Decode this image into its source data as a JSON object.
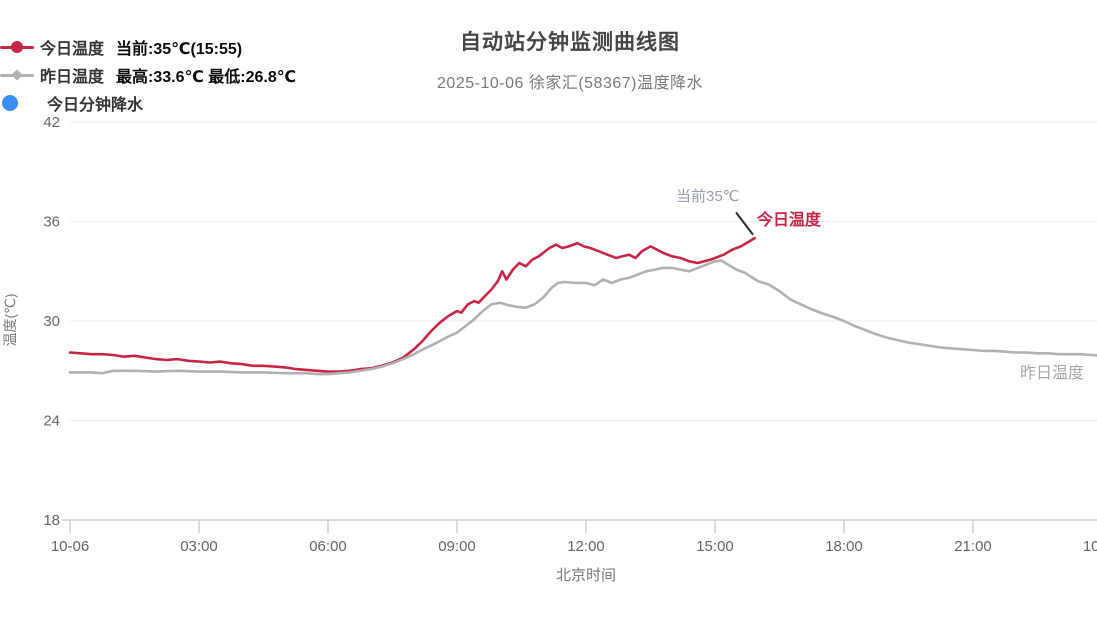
{
  "header": {
    "title": "自动站分钟监测曲线图",
    "subtitle": "2025-10-06 徐家汇(58367)温度降水"
  },
  "legend": {
    "items": [
      {
        "label": "今日温度",
        "value": "当前:35℃(15:55)",
        "marker": "line-circle",
        "color": "#c82647"
      },
      {
        "label": "昨日温度",
        "value": "最高:33.6℃ 最低:26.8℃",
        "marker": "line-diamond",
        "color": "#b1b1b1"
      },
      {
        "label": "今日分钟降水",
        "value": "",
        "marker": "circle",
        "color": "#3b8ef3"
      }
    ]
  },
  "axes": {
    "x": {
      "name": "北京时间",
      "ticks": [
        {
          "h": 0,
          "label": "10-06"
        },
        {
          "h": 3,
          "label": "03:00"
        },
        {
          "h": 6,
          "label": "06:00"
        },
        {
          "h": 9,
          "label": "09:00"
        },
        {
          "h": 12,
          "label": "12:00"
        },
        {
          "h": 15,
          "label": "15:00"
        },
        {
          "h": 18,
          "label": "18:00"
        },
        {
          "h": 21,
          "label": "21:00"
        },
        {
          "h": 24,
          "label": "10-07"
        }
      ]
    },
    "y": {
      "name": "温度(℃)",
      "min": 18,
      "max": 42,
      "ticks": [
        18,
        24,
        30,
        36,
        42
      ]
    }
  },
  "annotations": {
    "current_value": "当前35℃",
    "today_series_label": "今日温度",
    "yesterday_series_label": "昨日温度"
  },
  "chart_data": {
    "type": "line",
    "title": "自动站分钟监测曲线图",
    "subtitle": "2025-10-06 徐家汇(58367)温度降水",
    "xlabel": "北京时间",
    "ylabel": "温度(℃)",
    "ylim": [
      18,
      42
    ],
    "x_hours_range": [
      0,
      24
    ],
    "grid": true,
    "legend_position": "top-left",
    "series": [
      {
        "name": "今日温度",
        "type": "line",
        "color": "#c82647",
        "current": "35℃ (15:55)",
        "points": [
          [
            0,
            28.1
          ],
          [
            0.25,
            28.05
          ],
          [
            0.5,
            28.0
          ],
          [
            0.75,
            28.0
          ],
          [
            1,
            27.95
          ],
          [
            1.25,
            27.85
          ],
          [
            1.5,
            27.9
          ],
          [
            1.75,
            27.8
          ],
          [
            2,
            27.7
          ],
          [
            2.25,
            27.65
          ],
          [
            2.5,
            27.7
          ],
          [
            2.75,
            27.6
          ],
          [
            3,
            27.55
          ],
          [
            3.25,
            27.5
          ],
          [
            3.5,
            27.55
          ],
          [
            3.75,
            27.45
          ],
          [
            4,
            27.4
          ],
          [
            4.25,
            27.3
          ],
          [
            4.5,
            27.3
          ],
          [
            4.75,
            27.25
          ],
          [
            5,
            27.2
          ],
          [
            5.25,
            27.1
          ],
          [
            5.5,
            27.05
          ],
          [
            5.75,
            27.0
          ],
          [
            6,
            26.95
          ],
          [
            6.25,
            26.95
          ],
          [
            6.5,
            27.0
          ],
          [
            6.75,
            27.1
          ],
          [
            7,
            27.15
          ],
          [
            7.25,
            27.3
          ],
          [
            7.5,
            27.5
          ],
          [
            7.75,
            27.8
          ],
          [
            8,
            28.3
          ],
          [
            8.2,
            28.8
          ],
          [
            8.4,
            29.4
          ],
          [
            8.6,
            29.9
          ],
          [
            8.8,
            30.3
          ],
          [
            9,
            30.6
          ],
          [
            9.1,
            30.5
          ],
          [
            9.25,
            31.0
          ],
          [
            9.4,
            31.2
          ],
          [
            9.5,
            31.1
          ],
          [
            9.65,
            31.5
          ],
          [
            9.8,
            31.9
          ],
          [
            9.95,
            32.4
          ],
          [
            10.05,
            33.0
          ],
          [
            10.15,
            32.5
          ],
          [
            10.3,
            33.1
          ],
          [
            10.45,
            33.5
          ],
          [
            10.6,
            33.3
          ],
          [
            10.75,
            33.7
          ],
          [
            10.9,
            33.9
          ],
          [
            11,
            34.1
          ],
          [
            11.15,
            34.4
          ],
          [
            11.3,
            34.6
          ],
          [
            11.45,
            34.4
          ],
          [
            11.6,
            34.5
          ],
          [
            11.8,
            34.7
          ],
          [
            11.95,
            34.5
          ],
          [
            12.1,
            34.4
          ],
          [
            12.3,
            34.2
          ],
          [
            12.5,
            34.0
          ],
          [
            12.7,
            33.8
          ],
          [
            12.85,
            33.9
          ],
          [
            13,
            34.0
          ],
          [
            13.15,
            33.8
          ],
          [
            13.3,
            34.2
          ],
          [
            13.5,
            34.5
          ],
          [
            13.65,
            34.3
          ],
          [
            13.8,
            34.1
          ],
          [
            14,
            33.9
          ],
          [
            14.2,
            33.8
          ],
          [
            14.4,
            33.6
          ],
          [
            14.6,
            33.5
          ],
          [
            14.75,
            33.6
          ],
          [
            14.9,
            33.7
          ],
          [
            15,
            33.8
          ],
          [
            15.2,
            34.0
          ],
          [
            15.4,
            34.3
          ],
          [
            15.6,
            34.5
          ],
          [
            15.8,
            34.8
          ],
          [
            15.92,
            35.0
          ]
        ]
      },
      {
        "name": "昨日温度",
        "type": "line",
        "color": "#b1b1b1",
        "max": 33.6,
        "min": 26.8,
        "points": [
          [
            0,
            26.9
          ],
          [
            0.5,
            26.9
          ],
          [
            0.75,
            26.85
          ],
          [
            1,
            27.0
          ],
          [
            1.5,
            27.0
          ],
          [
            2,
            26.95
          ],
          [
            2.5,
            27.0
          ],
          [
            3,
            26.95
          ],
          [
            3.5,
            26.95
          ],
          [
            4,
            26.9
          ],
          [
            4.5,
            26.9
          ],
          [
            5,
            26.85
          ],
          [
            5.5,
            26.85
          ],
          [
            5.75,
            26.8
          ],
          [
            6,
            26.8
          ],
          [
            6.25,
            26.85
          ],
          [
            6.5,
            26.9
          ],
          [
            6.75,
            27.0
          ],
          [
            7,
            27.1
          ],
          [
            7.25,
            27.25
          ],
          [
            7.5,
            27.45
          ],
          [
            7.75,
            27.7
          ],
          [
            8,
            28.0
          ],
          [
            8.25,
            28.35
          ],
          [
            8.5,
            28.65
          ],
          [
            8.75,
            29.0
          ],
          [
            9,
            29.3
          ],
          [
            9.2,
            29.7
          ],
          [
            9.4,
            30.1
          ],
          [
            9.6,
            30.6
          ],
          [
            9.8,
            31.0
          ],
          [
            10,
            31.1
          ],
          [
            10.2,
            30.95
          ],
          [
            10.4,
            30.85
          ],
          [
            10.6,
            30.8
          ],
          [
            10.8,
            31.0
          ],
          [
            11,
            31.4
          ],
          [
            11.2,
            32.0
          ],
          [
            11.35,
            32.3
          ],
          [
            11.5,
            32.35
          ],
          [
            11.75,
            32.3
          ],
          [
            12,
            32.3
          ],
          [
            12.2,
            32.15
          ],
          [
            12.4,
            32.5
          ],
          [
            12.6,
            32.3
          ],
          [
            12.8,
            32.5
          ],
          [
            13,
            32.6
          ],
          [
            13.2,
            32.8
          ],
          [
            13.4,
            33.0
          ],
          [
            13.6,
            33.1
          ],
          [
            13.8,
            33.2
          ],
          [
            14,
            33.2
          ],
          [
            14.2,
            33.1
          ],
          [
            14.4,
            33.0
          ],
          [
            14.6,
            33.2
          ],
          [
            14.8,
            33.4
          ],
          [
            15,
            33.6
          ],
          [
            15.15,
            33.65
          ],
          [
            15.3,
            33.4
          ],
          [
            15.5,
            33.1
          ],
          [
            15.7,
            32.9
          ],
          [
            16,
            32.4
          ],
          [
            16.25,
            32.2
          ],
          [
            16.5,
            31.8
          ],
          [
            16.75,
            31.3
          ],
          [
            17,
            31.0
          ],
          [
            17.25,
            30.7
          ],
          [
            17.5,
            30.45
          ],
          [
            17.75,
            30.25
          ],
          [
            18,
            30.0
          ],
          [
            18.25,
            29.7
          ],
          [
            18.5,
            29.45
          ],
          [
            18.75,
            29.2
          ],
          [
            19,
            29.0
          ],
          [
            19.25,
            28.85
          ],
          [
            19.5,
            28.7
          ],
          [
            19.75,
            28.6
          ],
          [
            20,
            28.5
          ],
          [
            20.25,
            28.4
          ],
          [
            20.5,
            28.35
          ],
          [
            20.75,
            28.3
          ],
          [
            21,
            28.25
          ],
          [
            21.25,
            28.2
          ],
          [
            21.5,
            28.2
          ],
          [
            21.75,
            28.15
          ],
          [
            22,
            28.1
          ],
          [
            22.25,
            28.1
          ],
          [
            22.5,
            28.05
          ],
          [
            22.75,
            28.05
          ],
          [
            23,
            28.0
          ],
          [
            23.25,
            28.0
          ],
          [
            23.5,
            28.0
          ],
          [
            23.75,
            27.95
          ],
          [
            24,
            27.9
          ]
        ]
      },
      {
        "name": "今日分钟降水",
        "type": "scatter",
        "color": "#3b8ef3",
        "points": []
      }
    ]
  },
  "colors": {
    "today_line": "#c82647",
    "yesterday_line": "#b1b1b1",
    "precip": "#3b8ef3",
    "axis_label": "#666666",
    "grid_line": "#ebebeb",
    "axis_line": "#c9ced8",
    "title": "#454545",
    "subtitle": "#7a7a7a",
    "annotation_gray": "#98a0ab",
    "arrow": "#2b2b2b"
  }
}
